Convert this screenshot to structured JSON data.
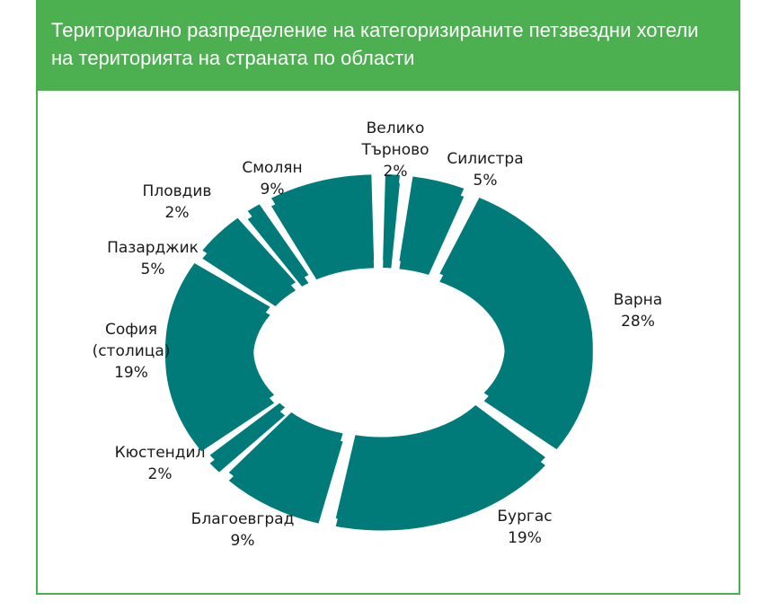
{
  "header": {
    "title_line1": "Териториално разпределение на категоризираните петзвездни хотели",
    "title_line2": "на територията на страната по области"
  },
  "colors": {
    "accent": "#4caf50",
    "slice": "#007b7a"
  },
  "chart_data": {
    "type": "pie",
    "variant": "donut-exploded",
    "title": "Териториално разпределение на категоризираните петзвездни хотели на територията на страната по области",
    "slices": [
      {
        "name": "Велико Търново",
        "label_lines": [
          "Велико",
          "Търново"
        ],
        "pct_label": "2%",
        "value": 2
      },
      {
        "name": "Силистра",
        "label_lines": [
          "Силистра"
        ],
        "pct_label": "5%",
        "value": 5
      },
      {
        "name": "Варна",
        "label_lines": [
          "Варна"
        ],
        "pct_label": "28%",
        "value": 28
      },
      {
        "name": "Бургас",
        "label_lines": [
          "Бургас"
        ],
        "pct_label": "19%",
        "value": 19
      },
      {
        "name": "Благоевград",
        "label_lines": [
          "Благоевград"
        ],
        "pct_label": "9%",
        "value": 9
      },
      {
        "name": "Кюстендил",
        "label_lines": [
          "Кюстендил"
        ],
        "pct_label": "2%",
        "value": 2
      },
      {
        "name": "София (столица)",
        "label_lines": [
          "София",
          "(столица)"
        ],
        "pct_label": "19%",
        "value": 19
      },
      {
        "name": "Пазарджик",
        "label_lines": [
          "Пазарджик"
        ],
        "pct_label": "5%",
        "value": 5
      },
      {
        "name": "Пловдив",
        "label_lines": [
          "Пловдив"
        ],
        "pct_label": "2%",
        "value": 2
      },
      {
        "name": "Смолян",
        "label_lines": [
          "Смолян"
        ],
        "pct_label": "9%",
        "value": 9
      }
    ]
  }
}
